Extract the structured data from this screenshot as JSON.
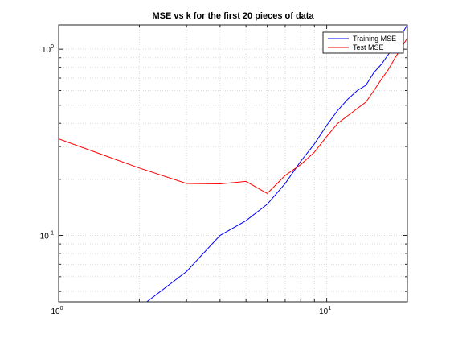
{
  "chart_data": {
    "type": "line",
    "title": "MSE vs k for the first 20 pieces of data",
    "xlabel": "",
    "ylabel": "",
    "xscale": "log",
    "yscale": "log",
    "xlim": [
      1,
      20
    ],
    "ylim": [
      0.044,
      1.35
    ],
    "grid": true,
    "legend_position": "top-right",
    "x_tick_labels": [
      {
        "value": 1,
        "base": "10",
        "exp": "0"
      },
      {
        "value": 10,
        "base": "10",
        "exp": "1"
      }
    ],
    "y_tick_labels": [
      {
        "value": 0.1,
        "base": "10",
        "exp": "-1"
      },
      {
        "value": 1,
        "base": "10",
        "exp": "0"
      }
    ],
    "series": [
      {
        "name": "Training MSE",
        "color": "#0000ff",
        "x": [
          1,
          2,
          3,
          4,
          5,
          6,
          7,
          8,
          9,
          10,
          11,
          12,
          13,
          14,
          15,
          16,
          17,
          18,
          19,
          20
        ],
        "y": [
          0.0,
          0.041,
          0.064,
          0.1,
          0.12,
          0.147,
          0.19,
          0.25,
          0.31,
          0.39,
          0.47,
          0.54,
          0.6,
          0.64,
          0.75,
          0.83,
          0.94,
          1.05,
          1.2,
          1.35
        ]
      },
      {
        "name": "Test MSE",
        "color": "#ff0000",
        "x": [
          1,
          2,
          3,
          4,
          5,
          6,
          7,
          8,
          9,
          10,
          11,
          12,
          13,
          14,
          15,
          16,
          17,
          18,
          19,
          20
        ],
        "y": [
          0.33,
          0.23,
          0.19,
          0.189,
          0.195,
          0.168,
          0.21,
          0.24,
          0.28,
          0.34,
          0.4,
          0.44,
          0.48,
          0.52,
          0.6,
          0.69,
          0.78,
          0.9,
          1.02,
          1.15
        ]
      }
    ]
  }
}
